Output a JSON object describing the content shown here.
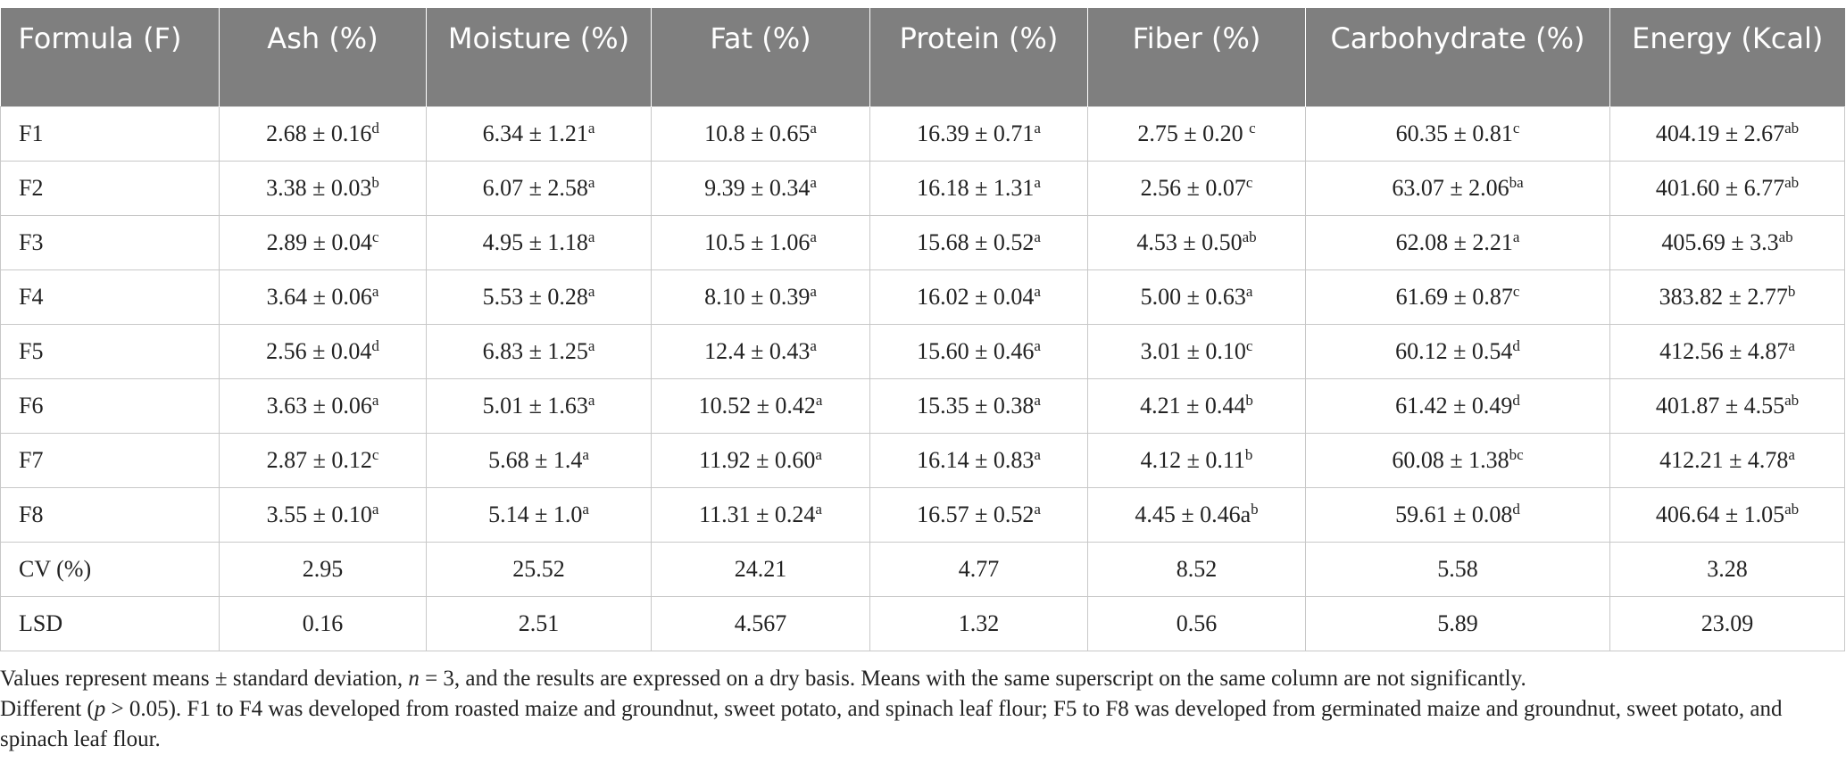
{
  "table": {
    "columns": [
      "Formula (F)",
      "Ash (%)",
      "Moisture (%)",
      "Fat (%)",
      "Protein (%)",
      "Fiber (%)",
      "Carbohydrate (%)",
      "Energy (Kcal)"
    ],
    "rows": [
      {
        "formula": "F1",
        "cells": [
          {
            "value": "2.68 ± 0.16",
            "sup": "d"
          },
          {
            "value": "6.34 ± 1.21",
            "sup": "a"
          },
          {
            "value": "10.8 ± 0.65",
            "sup": "a"
          },
          {
            "value": "16.39 ± 0.71",
            "sup": "a"
          },
          {
            "value": "2.75 ± 0.20 ",
            "sup": "c"
          },
          {
            "value": "60.35 ± 0.81",
            "sup": "c"
          },
          {
            "value": "404.19 ± 2.67",
            "sup": "ab"
          }
        ]
      },
      {
        "formula": "F2",
        "cells": [
          {
            "value": "3.38 ± 0.03",
            "sup": "b"
          },
          {
            "value": "6.07 ± 2.58",
            "sup": "a"
          },
          {
            "value": "9.39 ± 0.34",
            "sup": "a"
          },
          {
            "value": "16.18 ± 1.31",
            "sup": "a"
          },
          {
            "value": "2.56 ± 0.07",
            "sup": "c"
          },
          {
            "value": "63.07 ± 2.06",
            "sup": "ba"
          },
          {
            "value": "401.60 ± 6.77",
            "sup": "ab"
          }
        ]
      },
      {
        "formula": "F3",
        "cells": [
          {
            "value": "2.89 ± 0.04",
            "sup": "c"
          },
          {
            "value": "4.95 ± 1.18",
            "sup": "a"
          },
          {
            "value": "10.5 ± 1.06",
            "sup": "a"
          },
          {
            "value": "15.68 ± 0.52",
            "sup": "a"
          },
          {
            "value": "4.53 ± 0.50",
            "sup": "ab"
          },
          {
            "value": "62.08 ± 2.21",
            "sup": "a"
          },
          {
            "value": "405.69 ± 3.3",
            "sup": "ab"
          }
        ]
      },
      {
        "formula": "F4",
        "cells": [
          {
            "value": "3.64 ± 0.06",
            "sup": "a"
          },
          {
            "value": "5.53 ± 0.28",
            "sup": "a"
          },
          {
            "value": "8.10 ± 0.39",
            "sup": "a"
          },
          {
            "value": "16.02 ± 0.04",
            "sup": "a"
          },
          {
            "value": "5.00 ± 0.63",
            "sup": "a"
          },
          {
            "value": "61.69 ± 0.87",
            "sup": "c"
          },
          {
            "value": "383.82 ± 2.77",
            "sup": "b"
          }
        ]
      },
      {
        "formula": "F5",
        "cells": [
          {
            "value": "2.56 ± 0.04",
            "sup": "d"
          },
          {
            "value": "6.83 ± 1.25",
            "sup": "a"
          },
          {
            "value": "12.4 ± 0.43",
            "sup": "a"
          },
          {
            "value": "15.60 ± 0.46",
            "sup": "a"
          },
          {
            "value": "3.01 ± 0.10",
            "sup": "c"
          },
          {
            "value": "60.12 ± 0.54",
            "sup": "d"
          },
          {
            "value": "412.56 ± 4.87",
            "sup": "a"
          }
        ]
      },
      {
        "formula": "F6",
        "cells": [
          {
            "value": "3.63 ± 0.06",
            "sup": "a"
          },
          {
            "value": "5.01 ± 1.63",
            "sup": "a"
          },
          {
            "value": "10.52 ± 0.42",
            "sup": "a"
          },
          {
            "value": "15.35 ± 0.38",
            "sup": "a"
          },
          {
            "value": "4.21 ± 0.44",
            "sup": "b"
          },
          {
            "value": "61.42 ± 0.49",
            "sup": "d"
          },
          {
            "value": "401.87 ± 4.55",
            "sup": "ab"
          }
        ]
      },
      {
        "formula": "F7",
        "cells": [
          {
            "value": "2.87 ± 0.12",
            "sup": "c"
          },
          {
            "value": "5.68 ± 1.4",
            "sup": "a"
          },
          {
            "value": "11.92 ± 0.60",
            "sup": "a"
          },
          {
            "value": "16.14 ± 0.83",
            "sup": "a"
          },
          {
            "value": "4.12 ± 0.11",
            "sup": "b"
          },
          {
            "value": "60.08 ± 1.38",
            "sup": "bc"
          },
          {
            "value": "412.21 ± 4.78",
            "sup": "a"
          }
        ]
      },
      {
        "formula": "F8",
        "cells": [
          {
            "value": "3.55 ± 0.10",
            "sup": "a"
          },
          {
            "value": "5.14 ± 1.0",
            "sup": "a"
          },
          {
            "value": "11.31 ± 0.24",
            "sup": "a"
          },
          {
            "value": "16.57 ± 0.52",
            "sup": "a"
          },
          {
            "value": "4.45 ± 0.46a",
            "sup": "b"
          },
          {
            "value": "59.61 ± 0.08",
            "sup": "d"
          },
          {
            "value": "406.64 ± 1.05",
            "sup": "ab"
          }
        ]
      },
      {
        "formula": "CV (%)",
        "cells": [
          {
            "value": "2.95",
            "sup": ""
          },
          {
            "value": "25.52",
            "sup": ""
          },
          {
            "value": "24.21",
            "sup": ""
          },
          {
            "value": "4.77",
            "sup": ""
          },
          {
            "value": "8.52",
            "sup": ""
          },
          {
            "value": "5.58",
            "sup": ""
          },
          {
            "value": "3.28",
            "sup": ""
          }
        ]
      },
      {
        "formula": "LSD",
        "cells": [
          {
            "value": "0.16",
            "sup": ""
          },
          {
            "value": "2.51",
            "sup": ""
          },
          {
            "value": "4.567",
            "sup": ""
          },
          {
            "value": "1.32",
            "sup": ""
          },
          {
            "value": "0.56",
            "sup": ""
          },
          {
            "value": "5.89",
            "sup": ""
          },
          {
            "value": "23.09",
            "sup": ""
          }
        ]
      }
    ]
  },
  "footnote": {
    "line1_a": "Values represent means ± standard deviation, ",
    "line1_n": "n",
    "line1_b": " = 3, and the results are expressed on a dry basis. Means with the same superscript on the same column are not significantly.",
    "line2_a": "Different (",
    "line2_p": "p",
    "line2_b": " > 0.05). F1 to F4 was developed from roasted maize and groundnut, sweet potato, and spinach leaf flour; F5 to F8 was developed from germinated maize and groundnut, sweet potato, and spinach leaf flour."
  }
}
